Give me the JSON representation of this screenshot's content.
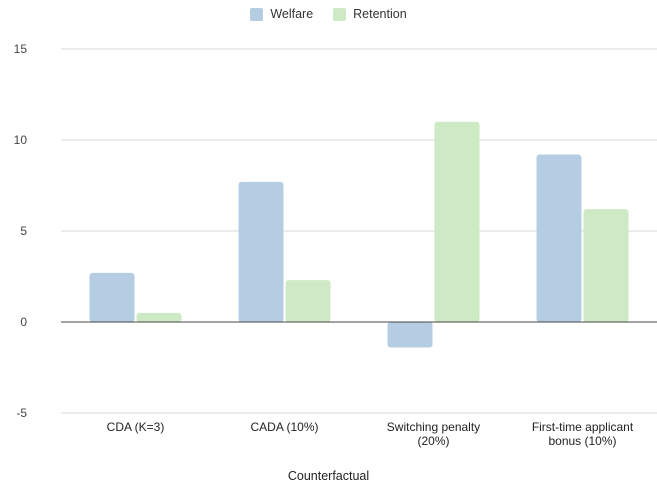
{
  "chart_data": {
    "type": "bar",
    "title": "",
    "xlabel": "Counterfactual",
    "ylabel": "",
    "categories": [
      [
        "CDA (K=3)"
      ],
      [
        "CADA (10%)"
      ],
      [
        "Switching penalty",
        "(20%)"
      ],
      [
        "First-time applicant",
        "bonus (10%)"
      ]
    ],
    "series": [
      {
        "name": "Welfare",
        "color": "#b4cde3",
        "values": [
          2.7,
          7.7,
          -1.4,
          9.2
        ]
      },
      {
        "name": "Retention",
        "color": "#cdeac4",
        "values": [
          0.5,
          2.3,
          11.0,
          6.2
        ]
      }
    ],
    "ylim": [
      -5,
      15
    ],
    "yticks": [
      15,
      10,
      5,
      0,
      -5
    ],
    "grid": true,
    "legend_position": "top"
  }
}
